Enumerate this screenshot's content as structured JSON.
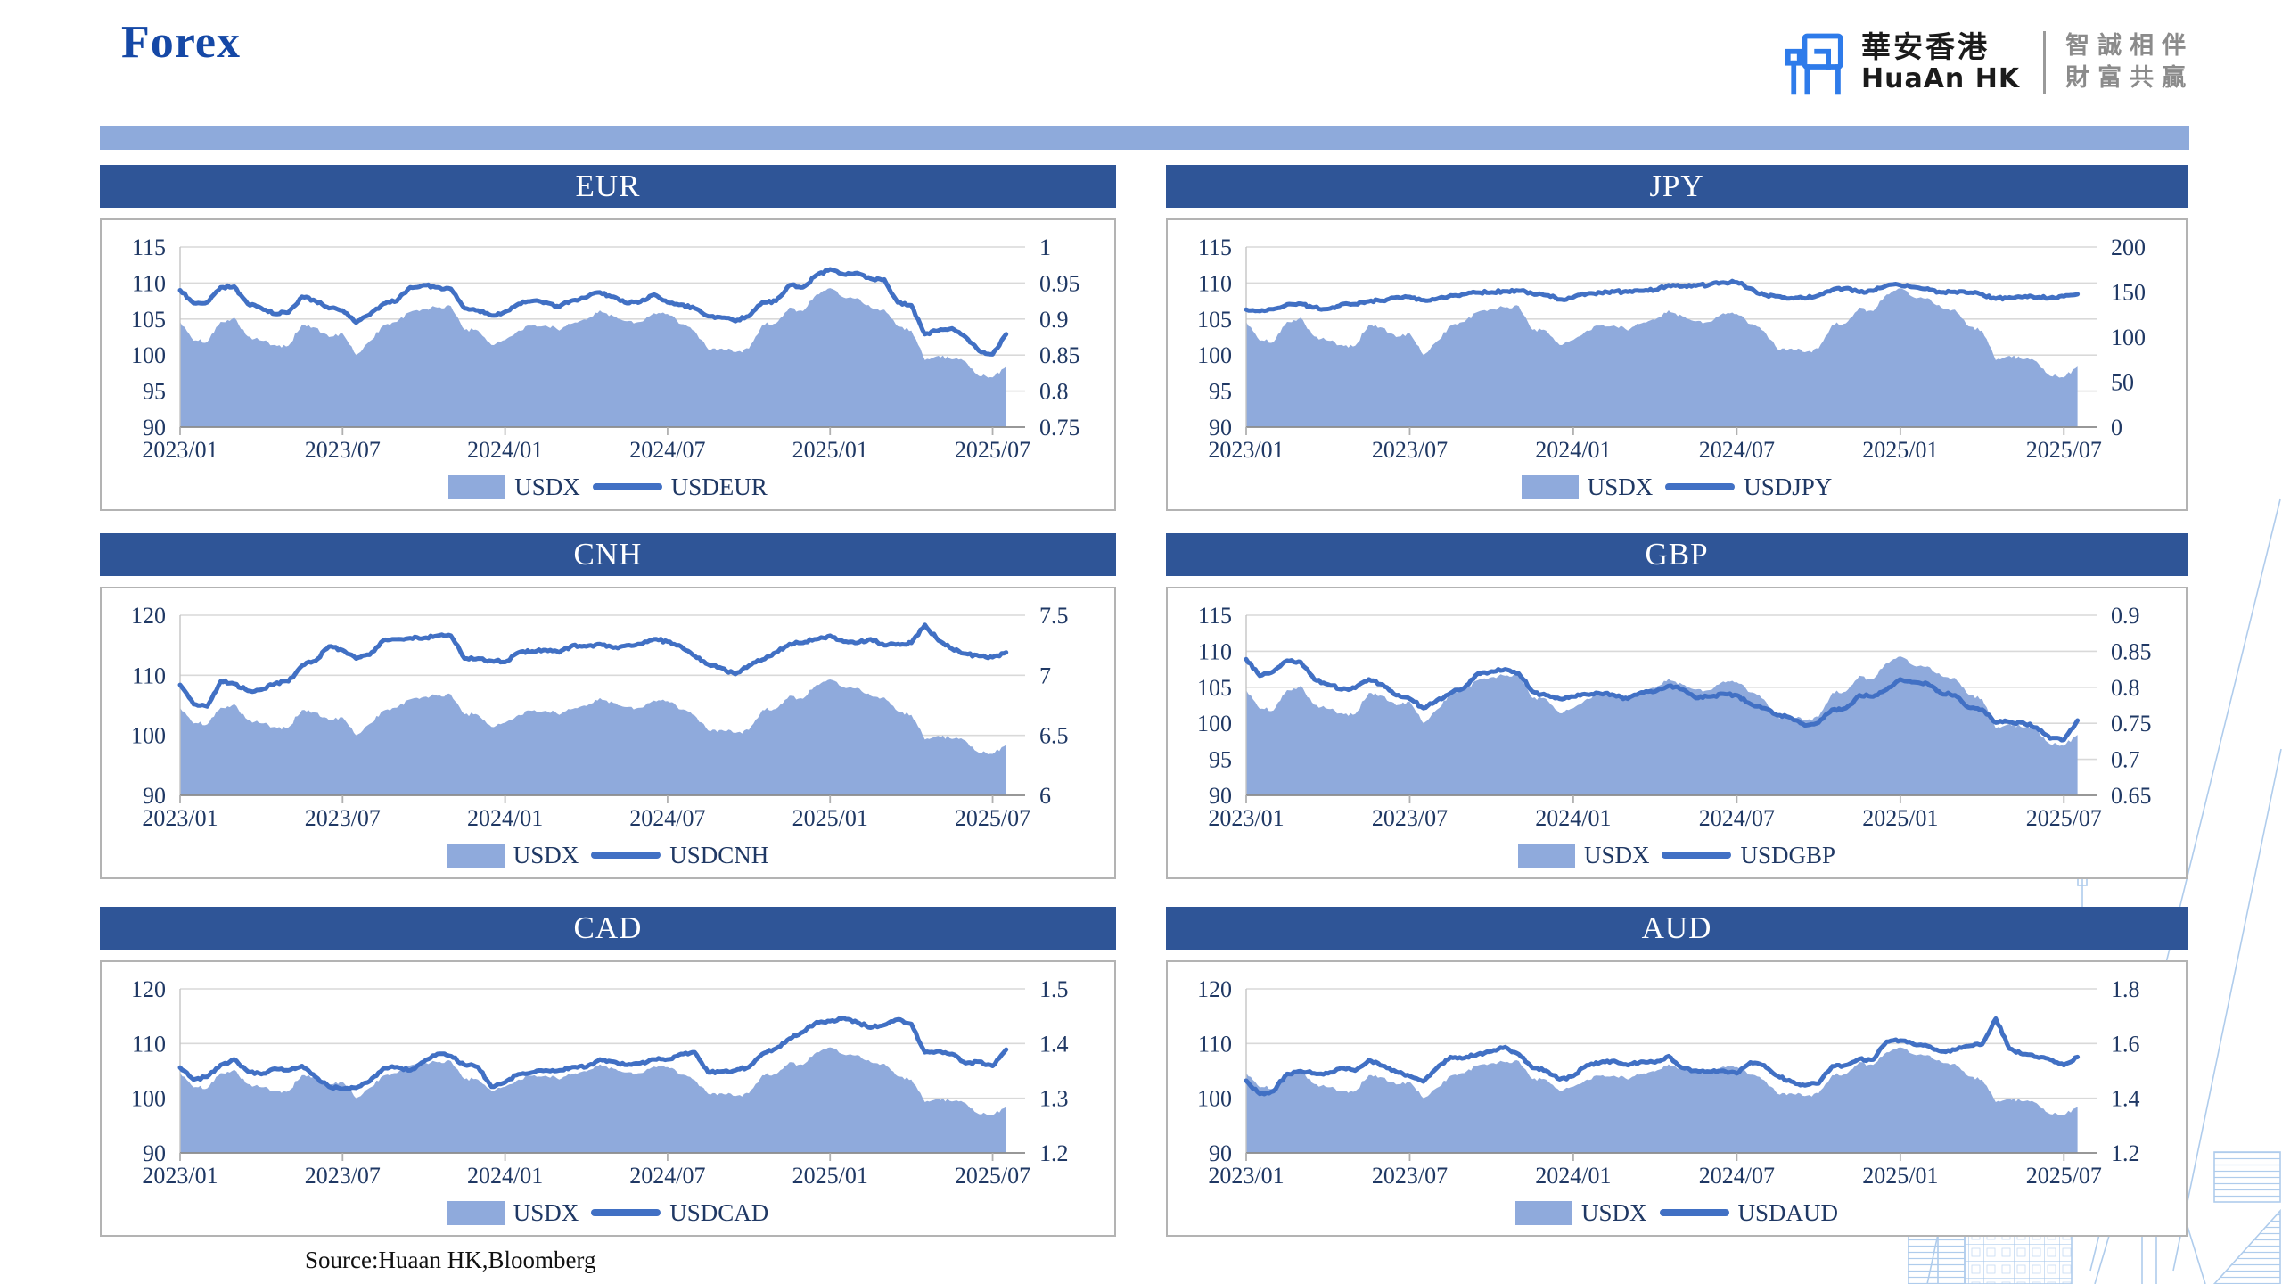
{
  "header": {
    "title": "Forex"
  },
  "logo": {
    "name_zh": "華安香港",
    "name_en": "HuaAn HK",
    "tagline_line1": "智誠相伴",
    "tagline_line2": "財富共贏"
  },
  "footer": {
    "source": "Source:Huaan HK,Bloomberg"
  },
  "colors": {
    "banner": "#2F5597",
    "strip": "#8EAADB",
    "area": "#8FAADC",
    "line": "#4170C4",
    "grid": "#D9D9D9",
    "axis_line": "#8C8C8C",
    "tick": "#B0B0B0",
    "axis_text": "#1F3864"
  },
  "usdx": {
    "name": "USDX",
    "values": [
      104.6,
      102.0,
      101.8,
      104.6,
      105.2,
      102.6,
      102.0,
      101.4,
      101.3,
      104.2,
      103.8,
      102.5,
      103.0,
      100.0,
      101.9,
      104.1,
      104.6,
      106.0,
      106.4,
      106.6,
      106.8,
      103.5,
      103.4,
      101.4,
      102.1,
      103.4,
      104.1,
      104.1,
      103.4,
      104.4,
      104.9,
      106.2,
      105.4,
      104.7,
      104.6,
      105.8,
      105.7,
      104.3,
      103.3,
      100.8,
      100.9,
      100.4,
      100.9,
      104.2,
      104.4,
      106.6,
      106.1,
      108.4,
      109.3,
      108.0,
      107.9,
      106.6,
      106.3,
      104.0,
      103.4,
      99.3,
      99.9,
      99.4,
      99.1,
      97.1,
      96.9,
      98.4
    ]
  },
  "chart_data": [
    {
      "type": "area+line",
      "title": "EUR",
      "legend_area": "USDX",
      "legend_line": "USDEUR",
      "x_ticks": [
        "2023/01",
        "2023/07",
        "2024/01",
        "2024/07",
        "2025/01",
        "2025/07"
      ],
      "left_ticks": [
        "90",
        "95",
        "100",
        "105",
        "110",
        "115"
      ],
      "right_ticks": [
        "0.75",
        "0.8",
        "0.85",
        "0.9",
        "0.95",
        "1"
      ],
      "left_range": [
        90,
        115
      ],
      "right_range": [
        0.75,
        1
      ],
      "line_values": [
        0.94,
        0.922,
        0.923,
        0.944,
        0.945,
        0.921,
        0.915,
        0.907,
        0.909,
        0.931,
        0.925,
        0.915,
        0.912,
        0.895,
        0.906,
        0.921,
        0.925,
        0.944,
        0.947,
        0.944,
        0.942,
        0.915,
        0.912,
        0.905,
        0.91,
        0.921,
        0.925,
        0.923,
        0.917,
        0.926,
        0.93,
        0.937,
        0.931,
        0.922,
        0.924,
        0.934,
        0.923,
        0.92,
        0.915,
        0.904,
        0.902,
        0.897,
        0.904,
        0.923,
        0.925,
        0.947,
        0.944,
        0.961,
        0.969,
        0.962,
        0.964,
        0.956,
        0.955,
        0.923,
        0.919,
        0.879,
        0.884,
        0.887,
        0.875,
        0.856,
        0.851,
        0.879
      ]
    },
    {
      "type": "area+line",
      "title": "JPY",
      "legend_area": "USDX",
      "legend_line": "USDJPY",
      "x_ticks": [
        "2023/01",
        "2023/07",
        "2024/01",
        "2024/07",
        "2025/01",
        "2025/07"
      ],
      "left_ticks": [
        "90",
        "95",
        "100",
        "105",
        "110",
        "115"
      ],
      "right_ticks": [
        "0",
        "50",
        "100",
        "150",
        "200"
      ],
      "left_range": [
        90,
        115
      ],
      "right_range": [
        0,
        200
      ],
      "line_values": [
        130.5,
        128.8,
        131.0,
        136.2,
        137.0,
        133.0,
        131.2,
        136.4,
        136.5,
        139.6,
        140.2,
        144.2,
        144.6,
        141.0,
        142.4,
        146.2,
        147.6,
        149.4,
        149.6,
        150.8,
        151.4,
        148.2,
        146.4,
        141.8,
        144.2,
        148.0,
        149.2,
        150.4,
        150.2,
        151.4,
        152.2,
        157.6,
        156.2,
        157.0,
        158.2,
        160.6,
        160.8,
        154.0,
        147.0,
        145.2,
        143.2,
        143.0,
        146.2,
        152.4,
        154.2,
        150.0,
        151.4,
        157.2,
        157.6,
        155.4,
        154.0,
        149.6,
        150.2,
        149.0,
        147.4,
        142.6,
        144.2,
        144.4,
        144.0,
        143.6,
        145.2,
        147.6
      ]
    },
    {
      "type": "area+line",
      "title": "CNH",
      "legend_area": "USDX",
      "legend_line": "USDCNH",
      "x_ticks": [
        "2023/01",
        "2023/07",
        "2024/01",
        "2024/07",
        "2025/01",
        "2025/07"
      ],
      "left_ticks": [
        "90",
        "100",
        "110",
        "120"
      ],
      "right_ticks": [
        "6",
        "6.5",
        "7",
        "7.5"
      ],
      "left_range": [
        90,
        120
      ],
      "right_range": [
        6,
        7.5
      ],
      "line_values": [
        6.92,
        6.76,
        6.74,
        6.95,
        6.93,
        6.87,
        6.88,
        6.93,
        6.95,
        7.08,
        7.12,
        7.24,
        7.21,
        7.14,
        7.17,
        7.29,
        7.3,
        7.31,
        7.31,
        7.33,
        7.33,
        7.14,
        7.14,
        7.12,
        7.11,
        7.19,
        7.2,
        7.21,
        7.19,
        7.25,
        7.24,
        7.26,
        7.23,
        7.25,
        7.26,
        7.3,
        7.28,
        7.24,
        7.16,
        7.09,
        7.06,
        7.01,
        7.08,
        7.13,
        7.19,
        7.26,
        7.27,
        7.3,
        7.33,
        7.28,
        7.27,
        7.3,
        7.25,
        7.26,
        7.27,
        7.42,
        7.29,
        7.22,
        7.18,
        7.16,
        7.15,
        7.19
      ]
    },
    {
      "type": "area+line",
      "title": "GBP",
      "legend_area": "USDX",
      "legend_line": "USDGBP",
      "x_ticks": [
        "2023/01",
        "2023/07",
        "2024/01",
        "2024/07",
        "2025/01",
        "2025/07"
      ],
      "left_ticks": [
        "90",
        "95",
        "100",
        "105",
        "110",
        "115"
      ],
      "right_ticks": [
        "0.65",
        "0.7",
        "0.75",
        "0.8",
        "0.85",
        "0.9"
      ],
      "left_range": [
        90,
        115
      ],
      "right_range": [
        0.65,
        0.9
      ],
      "line_values": [
        0.839,
        0.816,
        0.822,
        0.837,
        0.835,
        0.811,
        0.804,
        0.797,
        0.799,
        0.811,
        0.804,
        0.789,
        0.784,
        0.771,
        0.782,
        0.792,
        0.799,
        0.819,
        0.822,
        0.825,
        0.819,
        0.794,
        0.789,
        0.784,
        0.787,
        0.79,
        0.791,
        0.789,
        0.784,
        0.793,
        0.794,
        0.802,
        0.797,
        0.785,
        0.787,
        0.791,
        0.789,
        0.777,
        0.771,
        0.761,
        0.757,
        0.747,
        0.751,
        0.769,
        0.771,
        0.789,
        0.787,
        0.797,
        0.811,
        0.807,
        0.805,
        0.791,
        0.789,
        0.772,
        0.769,
        0.751,
        0.752,
        0.751,
        0.744,
        0.729,
        0.727,
        0.754
      ]
    },
    {
      "type": "area+line",
      "title": "CAD",
      "legend_area": "USDX",
      "legend_line": "USDCAD",
      "x_ticks": [
        "2023/01",
        "2023/07",
        "2024/01",
        "2024/07",
        "2025/01",
        "2025/07"
      ],
      "left_ticks": [
        "90",
        "100",
        "110",
        "120"
      ],
      "right_ticks": [
        "1.2",
        "1.3",
        "1.4",
        "1.5"
      ],
      "left_range": [
        90,
        120
      ],
      "right_range": [
        1.2,
        1.5
      ],
      "line_values": [
        1.356,
        1.334,
        1.339,
        1.361,
        1.371,
        1.349,
        1.344,
        1.354,
        1.351,
        1.359,
        1.339,
        1.321,
        1.317,
        1.319,
        1.331,
        1.354,
        1.357,
        1.351,
        1.367,
        1.381,
        1.377,
        1.361,
        1.357,
        1.321,
        1.329,
        1.344,
        1.347,
        1.351,
        1.351,
        1.357,
        1.357,
        1.371,
        1.367,
        1.361,
        1.364,
        1.371,
        1.371,
        1.381,
        1.384,
        1.347,
        1.349,
        1.351,
        1.357,
        1.381,
        1.391,
        1.409,
        1.421,
        1.439,
        1.441,
        1.447,
        1.439,
        1.429,
        1.434,
        1.444,
        1.436,
        1.384,
        1.386,
        1.381,
        1.364,
        1.367,
        1.359,
        1.389
      ]
    },
    {
      "type": "area+line",
      "title": "AUD",
      "legend_area": "USDX",
      "legend_line": "USDAUD",
      "x_ticks": [
        "2023/01",
        "2023/07",
        "2024/01",
        "2024/07",
        "2025/01",
        "2025/07"
      ],
      "left_ticks": [
        "90",
        "100",
        "110",
        "120"
      ],
      "right_ticks": [
        "1.2",
        "1.4",
        "1.6",
        "1.8"
      ],
      "left_range": [
        90,
        120
      ],
      "right_range": [
        1.2,
        1.8
      ],
      "line_values": [
        1.464,
        1.416,
        1.426,
        1.489,
        1.499,
        1.491,
        1.491,
        1.511,
        1.501,
        1.539,
        1.519,
        1.497,
        1.481,
        1.461,
        1.511,
        1.551,
        1.547,
        1.561,
        1.571,
        1.587,
        1.561,
        1.511,
        1.501,
        1.469,
        1.481,
        1.521,
        1.531,
        1.537,
        1.521,
        1.534,
        1.531,
        1.554,
        1.511,
        1.501,
        1.497,
        1.501,
        1.491,
        1.531,
        1.521,
        1.481,
        1.461,
        1.447,
        1.454,
        1.517,
        1.521,
        1.544,
        1.541,
        1.607,
        1.611,
        1.597,
        1.591,
        1.571,
        1.577,
        1.591,
        1.597,
        1.691,
        1.581,
        1.561,
        1.551,
        1.541,
        1.521,
        1.551
      ]
    }
  ]
}
